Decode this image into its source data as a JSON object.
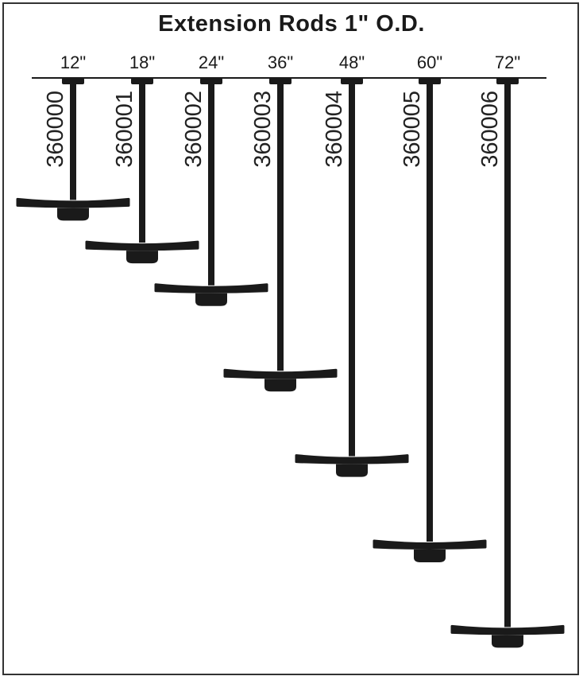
{
  "title": "Extension Rods 1\" O.D.",
  "rods": [
    {
      "length": "12\"",
      "part_number": "360000",
      "inches": 12
    },
    {
      "length": "18\"",
      "part_number": "360001",
      "inches": 18
    },
    {
      "length": "24\"",
      "part_number": "360002",
      "inches": 24
    },
    {
      "length": "36\"",
      "part_number": "360003",
      "inches": 36
    },
    {
      "length": "48\"",
      "part_number": "360004",
      "inches": 48
    },
    {
      "length": "60\"",
      "part_number": "360005",
      "inches": 60
    },
    {
      "length": "72\"",
      "part_number": "360006",
      "inches": 72
    }
  ],
  "colors": {
    "ink": "#1a1a1a",
    "background": "#ffffff"
  }
}
